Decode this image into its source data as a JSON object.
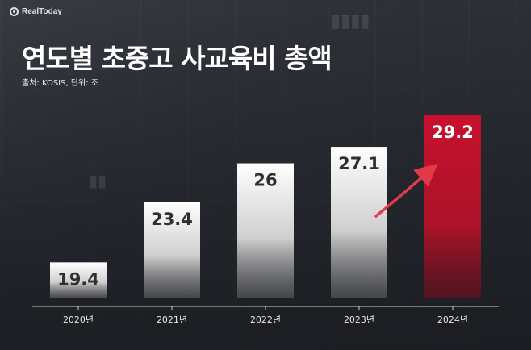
{
  "logo": {
    "text": "RealToday"
  },
  "header": {
    "title": "연도별 초중고 사교육비 총액",
    "source": "출처: KOSIS, 단위: 조"
  },
  "colors": {
    "bar": "#d8d8d8",
    "bar_highlight": "#c3162b",
    "arrow": "#e23a46",
    "axis": "#d0d0d0",
    "label": "#2f2f2f",
    "label_highlight": "#ffffff"
  },
  "chart_data": {
    "type": "bar",
    "title": "연도별 초중고 사교육비 총액",
    "categories": [
      "2020년",
      "2021년",
      "2022년",
      "2023년",
      "2024년"
    ],
    "values": [
      19.4,
      23.4,
      26,
      27.1,
      29.2
    ],
    "value_labels": [
      "19.4",
      "23.4",
      "26",
      "27.1",
      "29.2"
    ],
    "highlight_index": 4,
    "ylim": [
      17,
      29.2
    ],
    "grid": false,
    "legend": "none",
    "annotation": "arrow pointing up to last bar"
  }
}
